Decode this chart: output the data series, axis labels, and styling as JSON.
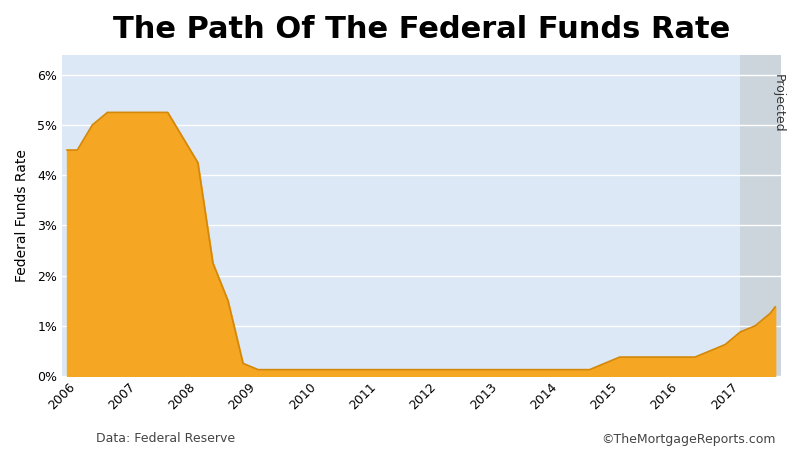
{
  "title": "The Path Of The Federal Funds Rate",
  "ylabel": "Federal Funds Rate",
  "data_source": "Data: Federal Reserve",
  "copyright": "©TheMortgageReports.com",
  "fill_color": "#F5A623",
  "fill_edge_color": "#D4880A",
  "projected_label": "Projected",
  "projected_start_x": 2017.0,
  "bg_color": "#dce8f5",
  "projected_bg_color": "#cdd5dc",
  "yticks": [
    0,
    1,
    2,
    3,
    4,
    5,
    6
  ],
  "ytick_labels": [
    "0%",
    "1%",
    "2%",
    "3%",
    "4%",
    "5%",
    "6%"
  ],
  "ylim": [
    0,
    6.4
  ],
  "xlim_start": 2005.75,
  "xlim_end": 2017.67,
  "xticks": [
    2006,
    2007,
    2008,
    2009,
    2010,
    2011,
    2012,
    2013,
    2014,
    2015,
    2016,
    2017
  ],
  "dates": [
    2005.83,
    2006.0,
    2006.25,
    2006.5,
    2006.75,
    2007.0,
    2007.25,
    2007.5,
    2007.75,
    2008.0,
    2008.25,
    2008.5,
    2008.75,
    2009.0,
    2009.25,
    2009.5,
    2009.75,
    2010.0,
    2010.25,
    2010.5,
    2010.75,
    2011.0,
    2011.25,
    2011.5,
    2011.75,
    2012.0,
    2012.25,
    2012.5,
    2012.75,
    2013.0,
    2013.25,
    2013.5,
    2013.75,
    2014.0,
    2014.25,
    2014.5,
    2014.75,
    2015.0,
    2015.25,
    2015.5,
    2015.75,
    2016.0,
    2016.25,
    2016.5,
    2016.75,
    2017.0,
    2017.25,
    2017.5,
    2017.58
  ],
  "rates": [
    4.5,
    4.5,
    5.0,
    5.25,
    5.25,
    5.25,
    5.25,
    5.25,
    4.75,
    4.25,
    2.25,
    1.5,
    0.25,
    0.125,
    0.125,
    0.125,
    0.125,
    0.125,
    0.125,
    0.125,
    0.125,
    0.125,
    0.125,
    0.125,
    0.125,
    0.125,
    0.125,
    0.125,
    0.125,
    0.125,
    0.125,
    0.125,
    0.125,
    0.125,
    0.125,
    0.125,
    0.25,
    0.375,
    0.375,
    0.375,
    0.375,
    0.375,
    0.375,
    0.5,
    0.625,
    0.875,
    1.0,
    1.25,
    1.375
  ],
  "title_fontsize": 22,
  "axis_label_fontsize": 10,
  "tick_fontsize": 9,
  "footer_fontsize": 9
}
